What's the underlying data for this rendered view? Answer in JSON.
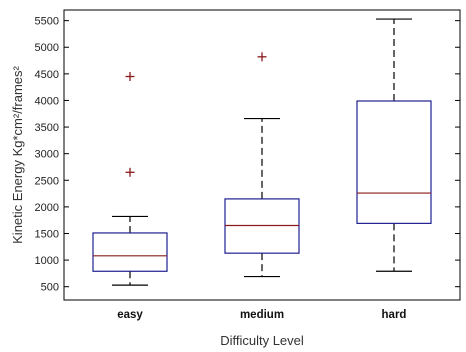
{
  "chart_data": {
    "type": "box",
    "xlabel": "Difficulty Level",
    "ylabel": "Kinetic Energy Kg*cm²/frames²",
    "ylim": [
      250,
      5700
    ],
    "yticks": [
      500,
      1000,
      1500,
      2000,
      2500,
      3000,
      3500,
      4000,
      4500,
      5000,
      5500
    ],
    "grid": false,
    "categories": [
      "easy",
      "medium",
      "hard"
    ],
    "boxes": [
      {
        "category": "easy",
        "min": 530,
        "q1": 790,
        "median": 1080,
        "q3": 1510,
        "max": 1820,
        "outliers": [
          2650,
          4450
        ]
      },
      {
        "category": "medium",
        "min": 690,
        "q1": 1130,
        "median": 1650,
        "q3": 2150,
        "max": 3660,
        "outliers": [
          4820
        ]
      },
      {
        "category": "hard",
        "min": 790,
        "q1": 1690,
        "median": 2260,
        "q3": 3990,
        "max": 5530,
        "outliers": []
      }
    ],
    "colors": {
      "box": "#1f1f8f",
      "median": "#8b1a1a",
      "outlier": "#8b1a1a",
      "whisker": "#000000",
      "axis": "#000000"
    }
  }
}
